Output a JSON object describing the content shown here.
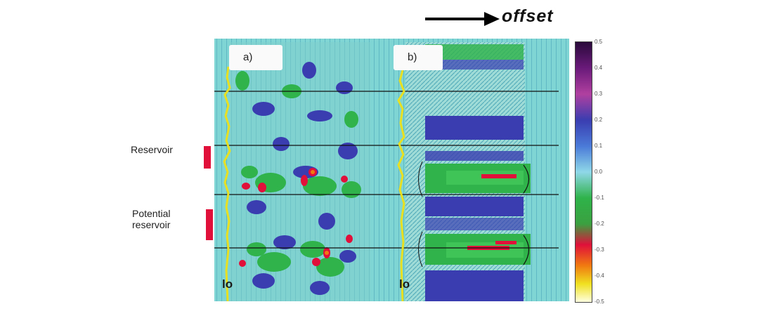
{
  "header": {
    "offset_label": "offset"
  },
  "annotations": {
    "reservoir": "Reservoir",
    "potential_line1": "Potential",
    "potential_line2": "reservoir"
  },
  "panels": {
    "a_label": "a)",
    "b_label": "b)",
    "a_well": "lo",
    "b_well": "lo"
  },
  "colorbar": {
    "ticks": [
      "0.5",
      "0.4",
      "0.3",
      "0.2",
      "0.1",
      "0.0",
      "-0.1",
      "-0.2",
      "-0.3",
      "-0.4",
      "-0.5"
    ]
  },
  "colors": {
    "background_cyan": "#7fd4d4",
    "seismic_blue": "#3a3db0",
    "seismic_green": "#2fb34a",
    "well_log": "#e8e020",
    "reservoir_marker": "#e0103a"
  }
}
